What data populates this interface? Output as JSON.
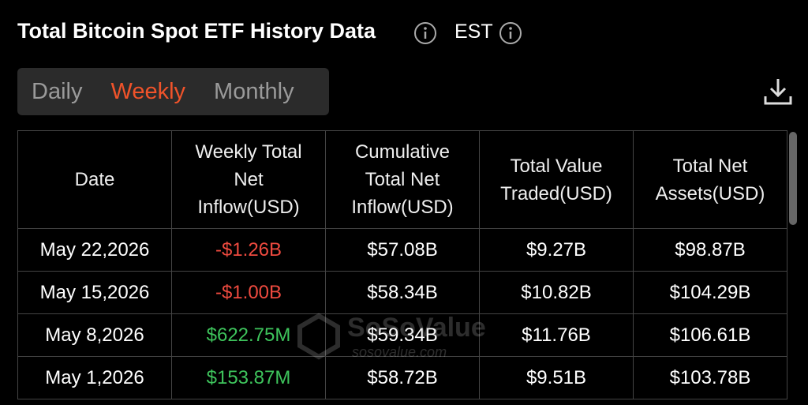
{
  "header": {
    "title": "Total Bitcoin Spot ETF History Data",
    "timezone": "EST"
  },
  "tabs": {
    "items": [
      "Daily",
      "Weekly",
      "Monthly"
    ],
    "active": 1,
    "active_color": "#f0532a",
    "color": "#9a9a9a"
  },
  "table": {
    "columns": [
      "Date",
      "Weekly Total Net Inflow(USD)",
      "Cumulative Total Net Inflow(USD)",
      "Total Value Traded(USD)",
      "Total Net Assets(USD)"
    ],
    "rows": [
      [
        "May 22,2026",
        "-$1.26B",
        "$57.08B",
        "$9.27B",
        "$98.87B"
      ],
      [
        "May 15,2026",
        "-$1.00B",
        "$58.34B",
        "$10.82B",
        "$104.29B"
      ],
      [
        "May 8,2026",
        "$622.75M",
        "$59.34B",
        "$11.76B",
        "$106.61B"
      ],
      [
        "May 1,2026",
        "$153.87M",
        "$58.72B",
        "$9.51B",
        "$103.78B"
      ]
    ],
    "inflow_colors": {
      "positive": "#3ec45c",
      "negative": "#ee4a3f"
    }
  },
  "watermark": {
    "brand": "SoSoValue",
    "url": "sosovalue.com"
  }
}
